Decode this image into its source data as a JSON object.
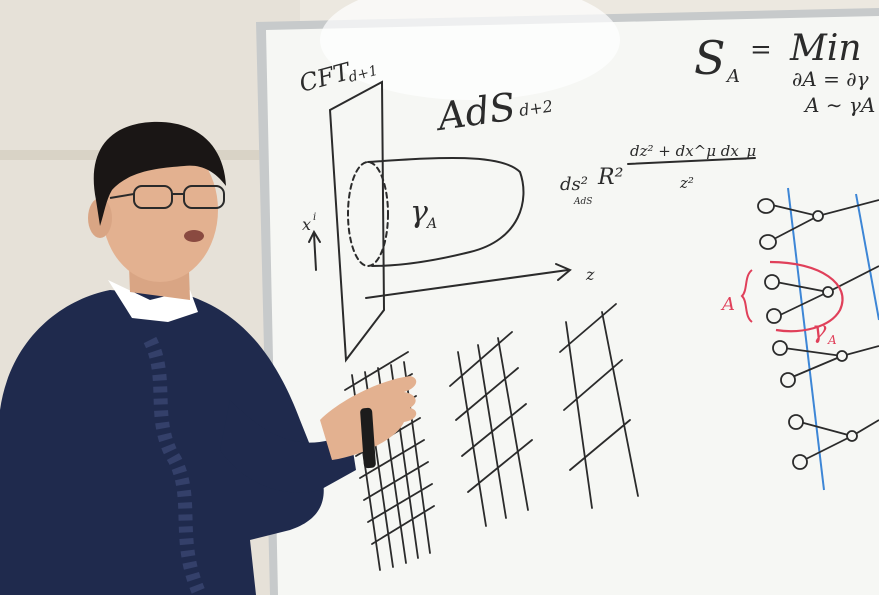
{
  "whiteboard": {
    "cft_label": "CFT",
    "cft_sub": "d+1",
    "ads_label": "AdS",
    "ads_sub": "d+2",
    "gamma_label": "γ",
    "gamma_sub": "A",
    "metric_lhs": "ds²",
    "metric_lhs_sub": "AdS",
    "metric_rhs": "R²",
    "metric_num": "dz² + dx^μ dx_μ",
    "metric_den": "z²",
    "axis_z": "z",
    "axis_x": "x",
    "axis_x_sup": "i",
    "entropy_s": "S",
    "entropy_s_sub": "A",
    "entropy_eq": "=",
    "entropy_min": "Min",
    "cond1": "∂A = ∂γ",
    "cond2": "A ∼ γA",
    "tn_a_label": "A",
    "tn_gamma_label": "γ",
    "tn_gamma_sub": "A"
  },
  "colors": {
    "wall": "#ece8e0",
    "board": "#f6f7f4",
    "frame": "#c7cacb",
    "marker": "#2b2b2b",
    "tensor_blue": "#3d86d6",
    "tensor_red": "#e0405a",
    "sweater": "#1f2a4d",
    "skin": "#e3b190",
    "hair": "#1a1615"
  }
}
